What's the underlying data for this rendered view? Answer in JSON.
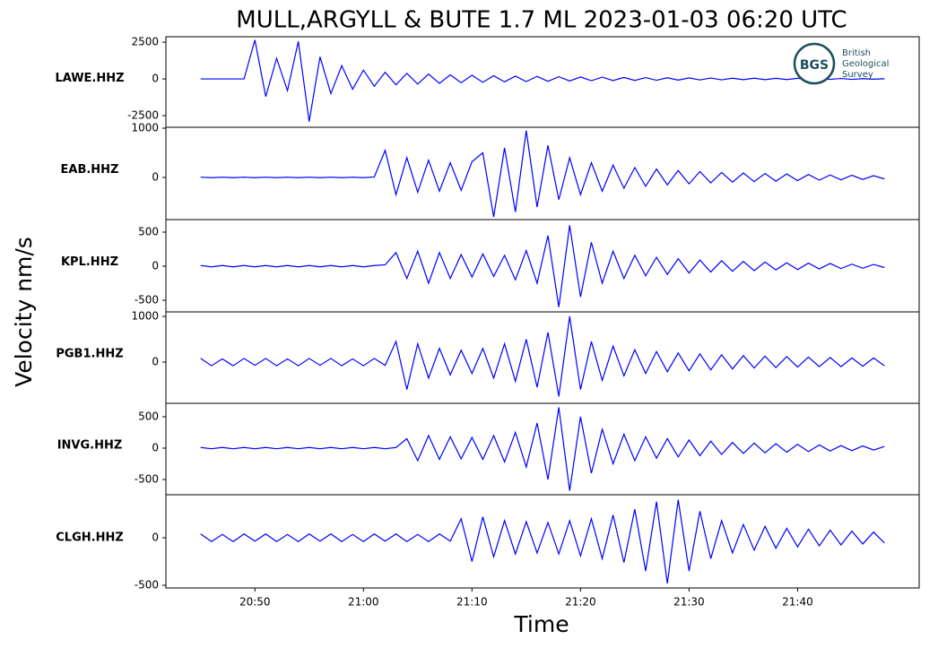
{
  "title": "MULL,ARGYLL & BUTE 1.7 ML   2023-01-03 06:20 UTC",
  "ylabel": "Velocity nm/s",
  "xlabel": "Time",
  "logo": {
    "abbr": "BGS",
    "lines": [
      "British",
      "Geological",
      "Survey"
    ]
  },
  "chart_data": [
    {
      "type": "line",
      "station": "LAWE.HHZ",
      "color": "#0000ff",
      "x": [
        45,
        46,
        47,
        48,
        49,
        50,
        51,
        52,
        53,
        54,
        55,
        56,
        57,
        58,
        59,
        60,
        61,
        62,
        63,
        64,
        65,
        66,
        67,
        68,
        69,
        70,
        71,
        72,
        73,
        74,
        75,
        76,
        77,
        78,
        79,
        80,
        81,
        82,
        83,
        84,
        85,
        86,
        87,
        88,
        89,
        90,
        91,
        92,
        93,
        94,
        95,
        96,
        97,
        98,
        99,
        100,
        101,
        102,
        103,
        104,
        105,
        106,
        107,
        108
      ],
      "values": [
        0,
        0,
        0,
        0,
        0,
        2650,
        -1200,
        1400,
        -800,
        2550,
        -2900,
        1500,
        -1000,
        900,
        -700,
        600,
        -500,
        450,
        -400,
        380,
        -350,
        330,
        -300,
        280,
        -260,
        250,
        -230,
        220,
        -200,
        190,
        -180,
        170,
        -160,
        150,
        -140,
        130,
        -120,
        120,
        -110,
        100,
        -100,
        90,
        -90,
        80,
        -80,
        70,
        -70,
        60,
        -60,
        50,
        -50,
        50,
        -50,
        40,
        -40,
        40,
        -40,
        30,
        -30,
        30,
        -30,
        20,
        -20,
        10
      ],
      "xlim": [
        41.8,
        111.2
      ],
      "ylim": [
        -3290,
        2870
      ],
      "yticks": [
        -2500,
        0,
        2500
      ]
    },
    {
      "type": "line",
      "station": "EAB.HHZ",
      "color": "#0000ff",
      "x": [
        45,
        46,
        47,
        48,
        49,
        50,
        51,
        52,
        53,
        54,
        55,
        56,
        57,
        58,
        59,
        60,
        61,
        62,
        63,
        64,
        65,
        66,
        67,
        68,
        69,
        70,
        71,
        72,
        73,
        74,
        75,
        76,
        77,
        78,
        79,
        80,
        81,
        82,
        83,
        84,
        85,
        86,
        87,
        88,
        89,
        90,
        91,
        92,
        93,
        94,
        95,
        96,
        97,
        98,
        99,
        100,
        101,
        102,
        103,
        104,
        105,
        106,
        107,
        108
      ],
      "values": [
        5,
        -5,
        5,
        -5,
        5,
        -5,
        5,
        -5,
        5,
        -5,
        5,
        -5,
        5,
        -5,
        5,
        -5,
        10,
        550,
        -350,
        400,
        -300,
        350,
        -280,
        300,
        -260,
        320,
        500,
        -800,
        600,
        -700,
        950,
        -600,
        650,
        -450,
        400,
        -350,
        300,
        -280,
        250,
        -220,
        200,
        -180,
        170,
        -150,
        140,
        -130,
        120,
        -110,
        100,
        -95,
        90,
        -85,
        80,
        -75,
        70,
        -65,
        60,
        -55,
        50,
        -50,
        45,
        -40,
        35,
        -30
      ],
      "xlim": [
        41.8,
        111.2
      ],
      "ylim": [
        -855,
        1018
      ],
      "yticks": [
        0,
        1000
      ]
    },
    {
      "type": "line",
      "station": "KPL.HHZ",
      "color": "#0000ff",
      "x": [
        45,
        46,
        47,
        48,
        49,
        50,
        51,
        52,
        53,
        54,
        55,
        56,
        57,
        58,
        59,
        60,
        61,
        62,
        63,
        64,
        65,
        66,
        67,
        68,
        69,
        70,
        71,
        72,
        73,
        74,
        75,
        76,
        77,
        78,
        79,
        80,
        81,
        82,
        83,
        84,
        85,
        86,
        87,
        88,
        89,
        90,
        91,
        92,
        93,
        94,
        95,
        96,
        97,
        98,
        99,
        100,
        101,
        102,
        103,
        104,
        105,
        106,
        107,
        108
      ],
      "values": [
        10,
        -10,
        10,
        -10,
        10,
        -10,
        10,
        -10,
        10,
        -10,
        10,
        -10,
        10,
        -10,
        10,
        -10,
        10,
        20,
        200,
        -180,
        220,
        -250,
        200,
        -180,
        170,
        -160,
        180,
        -150,
        160,
        -200,
        230,
        -250,
        450,
        -600,
        600,
        -450,
        350,
        -250,
        220,
        -180,
        160,
        -140,
        130,
        -120,
        110,
        -100,
        90,
        -85,
        80,
        -75,
        70,
        -65,
        60,
        -55,
        50,
        -50,
        45,
        -40,
        40,
        -35,
        30,
        -30,
        25,
        -20
      ],
      "xlim": [
        41.8,
        111.2
      ],
      "ylim": [
        -671,
        684
      ],
      "yticks": [
        -500,
        0,
        500
      ]
    },
    {
      "type": "line",
      "station": "PGB1.HHZ",
      "color": "#0000ff",
      "x": [
        45,
        46,
        47,
        48,
        49,
        50,
        51,
        52,
        53,
        54,
        55,
        56,
        57,
        58,
        59,
        60,
        61,
        62,
        63,
        64,
        65,
        66,
        67,
        68,
        69,
        70,
        71,
        72,
        73,
        74,
        75,
        76,
        77,
        78,
        79,
        80,
        81,
        82,
        83,
        84,
        85,
        86,
        87,
        88,
        89,
        90,
        91,
        92,
        93,
        94,
        95,
        96,
        97,
        98,
        99,
        100,
        101,
        102,
        103,
        104,
        105,
        106,
        107,
        108
      ],
      "values": [
        80,
        -80,
        70,
        -80,
        80,
        -70,
        80,
        -80,
        70,
        -80,
        80,
        -70,
        80,
        -80,
        70,
        -80,
        80,
        -70,
        450,
        -600,
        400,
        -350,
        300,
        -280,
        260,
        -250,
        300,
        -350,
        400,
        -420,
        500,
        -550,
        650,
        -750,
        1000,
        -600,
        450,
        -400,
        350,
        -300,
        270,
        -250,
        230,
        -210,
        200,
        -190,
        180,
        -170,
        160,
        -150,
        140,
        -130,
        130,
        -120,
        120,
        -110,
        110,
        -100,
        100,
        -100,
        90,
        -90,
        90,
        -80
      ],
      "xlim": [
        41.8,
        111.2
      ],
      "ylim": [
        -902,
        1098
      ],
      "yticks": [
        0,
        1000
      ]
    },
    {
      "type": "line",
      "station": "INVG.HHZ",
      "color": "#0000ff",
      "x": [
        45,
        46,
        47,
        48,
        49,
        50,
        51,
        52,
        53,
        54,
        55,
        56,
        57,
        58,
        59,
        60,
        61,
        62,
        63,
        64,
        65,
        66,
        67,
        68,
        69,
        70,
        71,
        72,
        73,
        74,
        75,
        76,
        77,
        78,
        79,
        80,
        81,
        82,
        83,
        84,
        85,
        86,
        87,
        88,
        89,
        90,
        91,
        92,
        93,
        94,
        95,
        96,
        97,
        98,
        99,
        100,
        101,
        102,
        103,
        104,
        105,
        106,
        107,
        108
      ],
      "values": [
        10,
        -10,
        10,
        -10,
        10,
        -10,
        10,
        -10,
        10,
        -10,
        10,
        -10,
        10,
        -10,
        10,
        -10,
        10,
        -10,
        10,
        150,
        -200,
        200,
        -180,
        180,
        -170,
        170,
        -180,
        200,
        -220,
        250,
        -300,
        400,
        -500,
        650,
        -680,
        500,
        -400,
        300,
        -250,
        220,
        -200,
        180,
        -160,
        150,
        -140,
        130,
        -120,
        110,
        -100,
        90,
        -85,
        80,
        -75,
        70,
        -65,
        60,
        -55,
        50,
        -45,
        40,
        -40,
        35,
        -30,
        25
      ],
      "xlim": [
        41.8,
        111.2
      ],
      "ylim": [
        -743,
        714
      ],
      "yticks": [
        -500,
        0,
        500
      ]
    },
    {
      "type": "line",
      "station": "CLGH.HHZ",
      "color": "#0000ff",
      "x": [
        45,
        46,
        47,
        48,
        49,
        50,
        51,
        52,
        53,
        54,
        55,
        56,
        57,
        58,
        59,
        60,
        61,
        62,
        63,
        64,
        65,
        66,
        67,
        68,
        69,
        70,
        71,
        72,
        73,
        74,
        75,
        76,
        77,
        78,
        79,
        80,
        81,
        82,
        83,
        84,
        85,
        86,
        87,
        88,
        89,
        90,
        91,
        92,
        93,
        94,
        95,
        96,
        97,
        98,
        99,
        100,
        101,
        102,
        103,
        104,
        105,
        106,
        107,
        108
      ],
      "values": [
        40,
        -40,
        35,
        -40,
        40,
        -35,
        40,
        -40,
        35,
        -40,
        40,
        -35,
        40,
        -40,
        35,
        -40,
        40,
        -35,
        40,
        -40,
        35,
        -40,
        40,
        -35,
        200,
        -250,
        220,
        -200,
        180,
        -170,
        170,
        -160,
        160,
        -170,
        180,
        -190,
        200,
        -220,
        240,
        -260,
        300,
        -350,
        380,
        -480,
        400,
        -350,
        280,
        -220,
        180,
        -160,
        140,
        -130,
        120,
        -110,
        100,
        -95,
        90,
        -85,
        80,
        -75,
        70,
        -65,
        60,
        -55
      ],
      "xlim": [
        41.8,
        111.2
      ],
      "ylim": [
        -528,
        453
      ],
      "yticks": [
        -500,
        0
      ],
      "xticks": [
        {
          "value": 50,
          "label": "20:50"
        },
        {
          "value": 60,
          "label": "21:00"
        },
        {
          "value": 70,
          "label": "21:10"
        },
        {
          "value": 80,
          "label": "21:20"
        },
        {
          "value": 90,
          "label": "21:30"
        },
        {
          "value": 100,
          "label": "21:40"
        }
      ]
    }
  ]
}
